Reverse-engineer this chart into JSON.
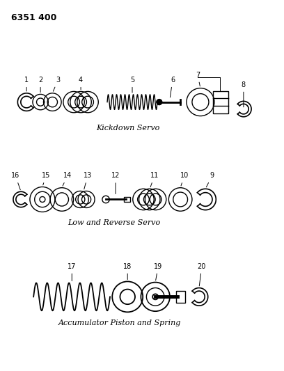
{
  "title_code": "6351 400",
  "background_color": "#ffffff",
  "line_color": "#000000",
  "section1_label": "Kickdown Servo",
  "section2_label": "Low and Reverse Servo",
  "section3_label": "Accumulator Piston and Spring",
  "fig_width": 4.08,
  "fig_height": 5.33,
  "dpi": 100
}
